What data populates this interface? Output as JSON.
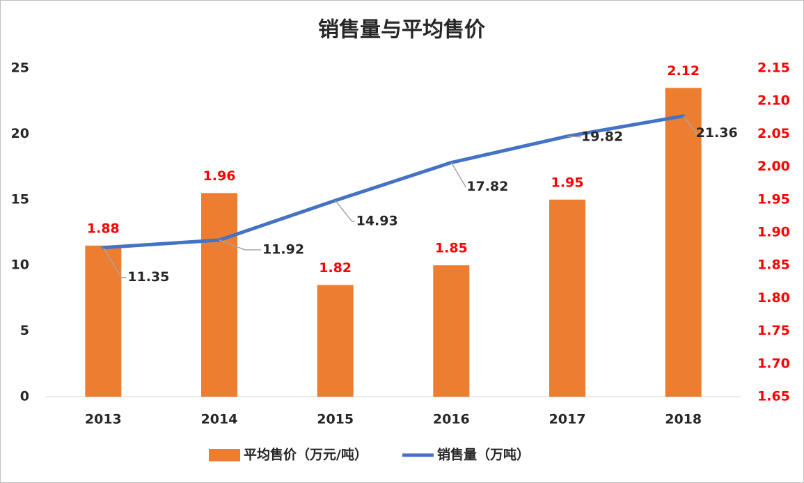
{
  "chart_data": {
    "type": "combo",
    "title": "销售量与平均售价",
    "categories": [
      "2013",
      "2014",
      "2015",
      "2016",
      "2017",
      "2018"
    ],
    "series": [
      {
        "name": "平均售价（万元/吨）",
        "type": "bar",
        "axis": "y2",
        "color": "#ED7D31",
        "values": [
          1.88,
          1.96,
          1.82,
          1.85,
          1.95,
          2.12
        ]
      },
      {
        "name": "销售量（万吨）",
        "type": "line",
        "color": "#4472C4",
        "values": [
          11.35,
          11.92,
          14.93,
          17.82,
          19.82,
          21.36
        ]
      }
    ],
    "ylim": [
      0,
      25
    ],
    "yticks": [
      0,
      5,
      10,
      15,
      20,
      25
    ],
    "y2lim": [
      1.65,
      2.15
    ],
    "y2ticks": [
      1.65,
      {
        "value": 1.7,
        "label": "1.70"
      },
      1.75,
      {
        "value": 1.8,
        "label": "1.80"
      },
      1.85,
      {
        "value": 1.9,
        "label": "1.90"
      },
      1.95,
      {
        "value": 2.0,
        "label": "2.00"
      },
      2.05,
      {
        "value": 2.1,
        "label": "2.10"
      },
      2.15
    ],
    "legend": "bottom",
    "grid": false
  }
}
